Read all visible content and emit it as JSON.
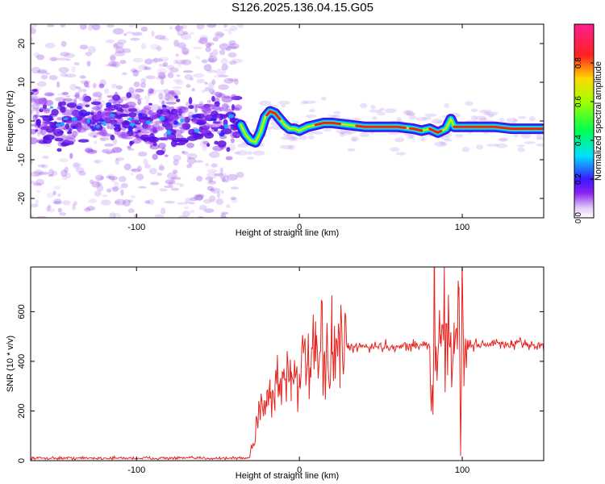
{
  "title": "S126.2025.136.04.15.G05",
  "chart_data": [
    {
      "type": "heatmap",
      "xlabel": "Height of straight line (km)",
      "ylabel": "Frequency (Hz)",
      "xlim": [
        -165,
        150
      ],
      "ylim": [
        -25,
        25
      ],
      "xticks": [
        -100,
        0,
        100
      ],
      "yticks": [
        -20,
        -10,
        0,
        10,
        20
      ],
      "colorbar": {
        "label": "Normalized spectral amplitude",
        "range": [
          0.0,
          1.0
        ],
        "ticks": [
          "0.0",
          "0.2",
          "0.4",
          "0.6",
          "0.8"
        ]
      },
      "ridge": {
        "x": [
          -36,
          -33,
          -30,
          -27,
          -24,
          -21,
          -18,
          -15,
          -12,
          -9,
          -6,
          -3,
          0,
          5,
          10,
          15,
          20,
          30,
          40,
          50,
          60,
          70,
          75,
          80,
          85,
          90,
          93,
          95,
          100,
          110,
          120,
          130,
          140,
          150
        ],
        "y": [
          -1.0,
          -3.5,
          -5.0,
          -5.5,
          -3.0,
          1.0,
          2.5,
          2.0,
          0.5,
          -1.0,
          -2.0,
          -2.0,
          -2.5,
          -1.5,
          -1.0,
          -0.5,
          -0.5,
          -1.0,
          -1.5,
          -1.5,
          -1.5,
          -2.0,
          -2.5,
          -2.0,
          -3.0,
          -2.0,
          0.5,
          -1.5,
          -1.5,
          -1.5,
          -1.5,
          -2.0,
          -2.0,
          -2.0
        ]
      }
    },
    {
      "type": "line",
      "xlabel": "Height of straight line (km)",
      "ylabel": "SNR (10 * v/v)",
      "xlim": [
        -165,
        150
      ],
      "ylim": [
        0,
        780
      ],
      "xticks": [
        -100,
        0,
        100
      ],
      "yticks": [
        0,
        200,
        400,
        600
      ],
      "series": [
        {
          "x": [
            -165,
            -40,
            -28,
            -25,
            -22,
            -20,
            -18,
            -15,
            -12,
            -10,
            -5,
            0,
            5,
            10,
            15,
            20,
            25,
            30,
            40,
            50,
            60,
            70,
            75,
            80,
            82,
            83,
            84,
            85,
            87,
            90,
            92,
            95,
            98,
            99,
            100,
            101,
            102,
            104,
            110,
            120,
            130,
            140,
            150
          ],
          "y": [
            10,
            10,
            60,
            240,
            200,
            280,
            250,
            300,
            310,
            330,
            360,
            350,
            380,
            400,
            420,
            430,
            440,
            450,
            460,
            460,
            460,
            465,
            465,
            460,
            185,
            720,
            460,
            420,
            460,
            540,
            470,
            430,
            700,
            40,
            780,
            300,
            470,
            465,
            470,
            470,
            465,
            470,
            460
          ]
        }
      ]
    }
  ]
}
